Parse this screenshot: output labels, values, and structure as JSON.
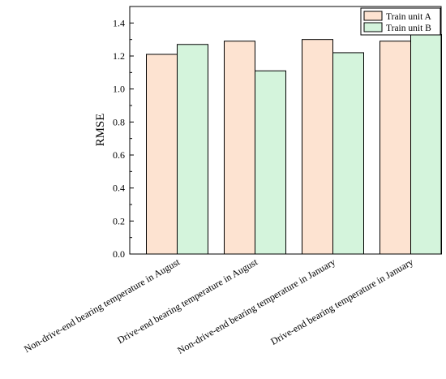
{
  "chart_data": {
    "type": "bar",
    "categories": [
      "Non-drive-end bearing temperature in August",
      "Drive-end bearing temperature in August",
      "Non-drive-end bearing temperature in January",
      "Drive-end bearing temperature in January"
    ],
    "series": [
      {
        "name": "Train unit A",
        "values": [
          1.21,
          1.29,
          1.3,
          1.29
        ],
        "color": "#fde3d1"
      },
      {
        "name": "Train unit B",
        "values": [
          1.27,
          1.11,
          1.22,
          1.33
        ],
        "color": "#d4f4dc"
      }
    ],
    "ylabel": "RMSE",
    "xlabel": "",
    "ylim": [
      0,
      1.5
    ],
    "yticks": [
      "0.0",
      "0.2",
      "0.4",
      "0.6",
      "0.8",
      "1.0",
      "1.2",
      "1.4"
    ],
    "legend_position": "top-right",
    "grid": false
  }
}
